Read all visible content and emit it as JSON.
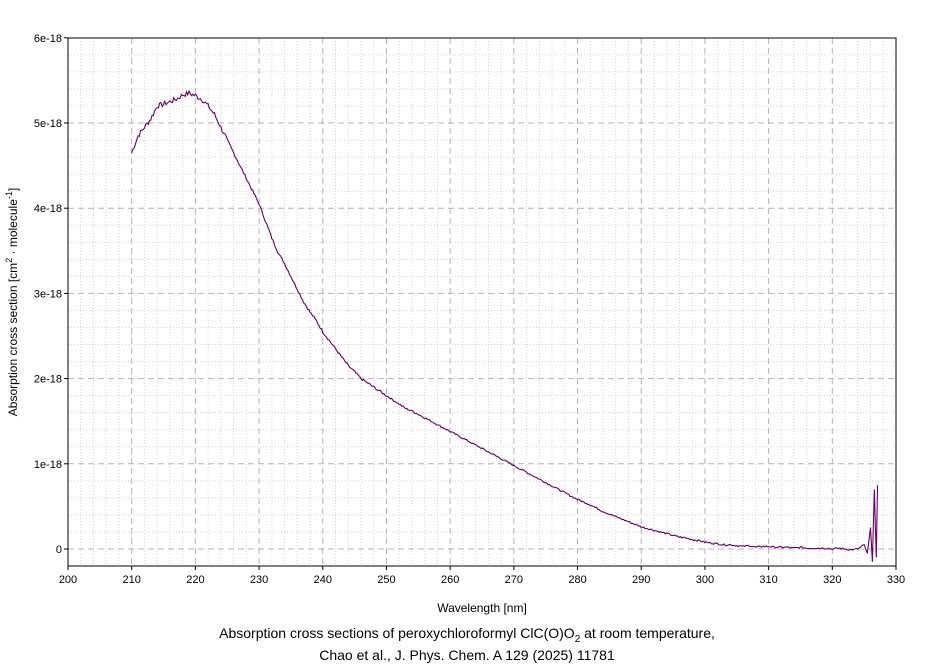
{
  "chart_data": {
    "type": "line",
    "xlabel": "Wavelength [nm]",
    "ylabel": {
      "prefix": "Absorption cross section [cm",
      "sup1": "2",
      "middle": " · molecule",
      "sup2": "-1",
      "suffix": "]"
    },
    "xlim": [
      200,
      330
    ],
    "ylim": [
      -2e-19,
      6e-18
    ],
    "x_ticks": [
      200,
      210,
      220,
      230,
      240,
      250,
      260,
      270,
      280,
      290,
      300,
      310,
      320,
      330
    ],
    "y_ticks": [
      {
        "value": 0,
        "label": "0"
      },
      {
        "value": 1e-18,
        "label": "1e-18"
      },
      {
        "value": 2e-18,
        "label": "2e-18"
      },
      {
        "value": 3e-18,
        "label": "3e-18"
      },
      {
        "value": 4e-18,
        "label": "4e-18"
      },
      {
        "value": 5e-18,
        "label": "5e-18"
      },
      {
        "value": 6e-18,
        "label": "6e-18"
      }
    ],
    "grid": true,
    "series": [
      {
        "color": "#660066",
        "x": [
          210,
          211,
          212,
          213,
          214,
          215,
          216,
          217,
          218,
          219,
          220,
          221,
          222,
          223,
          224,
          225,
          226,
          227,
          228,
          229,
          230,
          231,
          232,
          233,
          234,
          235,
          236,
          237,
          238,
          239,
          240,
          241,
          242,
          243,
          244,
          245,
          246,
          247,
          248,
          249,
          250,
          251,
          252,
          253,
          254,
          255,
          256,
          257,
          258,
          259,
          260,
          261,
          262,
          263,
          264,
          265,
          266,
          267,
          268,
          269,
          270,
          271,
          272,
          273,
          274,
          275,
          276,
          277,
          278,
          279,
          280,
          281,
          282,
          283,
          284,
          285,
          286,
          287,
          288,
          289,
          290,
          291,
          292,
          293,
          294,
          295,
          296,
          297,
          298,
          299,
          300,
          301,
          302,
          303,
          304,
          305,
          306,
          307,
          308,
          309,
          310,
          311,
          312,
          313,
          314,
          315,
          316,
          317,
          318,
          319,
          320,
          321,
          322,
          323,
          324,
          325,
          325.5,
          326,
          326.3,
          326.6,
          326.9,
          327.1
        ],
        "y": [
          4.65e-18,
          4.85e-18,
          4.95e-18,
          5.05e-18,
          5.2e-18,
          5.22e-18,
          5.25e-18,
          5.28e-18,
          5.33e-18,
          5.35e-18,
          5.32e-18,
          5.28e-18,
          5.2e-18,
          5.1e-18,
          4.95e-18,
          4.8e-18,
          4.65e-18,
          4.5e-18,
          4.35e-18,
          4.2e-18,
          4.05e-18,
          3.85e-18,
          3.65e-18,
          3.48e-18,
          3.35e-18,
          3.2e-18,
          3.05e-18,
          2.9e-18,
          2.78e-18,
          2.68e-18,
          2.55e-18,
          2.45e-18,
          2.35e-18,
          2.25e-18,
          2.15e-18,
          2.08e-18,
          2e-18,
          1.95e-18,
          1.9e-18,
          1.85e-18,
          1.8e-18,
          1.75e-18,
          1.7e-18,
          1.65e-18,
          1.62e-18,
          1.58e-18,
          1.54e-18,
          1.5e-18,
          1.46e-18,
          1.42e-18,
          1.38e-18,
          1.34e-18,
          1.3e-18,
          1.26e-18,
          1.22e-18,
          1.18e-18,
          1.14e-18,
          1.1e-18,
          1.06e-18,
          1.02e-18,
          9.8e-19,
          9.4e-19,
          9e-19,
          8.6e-19,
          8.2e-19,
          7.8e-19,
          7.4e-19,
          7e-19,
          6.6e-19,
          6.2e-19,
          5.8e-19,
          5.5e-19,
          5.2e-19,
          4.8e-19,
          4.4e-19,
          4.1e-19,
          3.8e-19,
          3.5e-19,
          3.2e-19,
          2.9e-19,
          2.6e-19,
          2.4e-19,
          2.2e-19,
          2e-19,
          1.8e-19,
          1.6e-19,
          1.4e-19,
          1.3e-19,
          1.1e-19,
          1e-19,
          8e-20,
          7e-20,
          6e-20,
          5e-20,
          5e-20,
          4e-20,
          3e-20,
          4e-20,
          2e-20,
          3e-20,
          3e-20,
          2e-20,
          2e-20,
          2e-20,
          1e-20,
          2e-20,
          1e-20,
          1e-20,
          1e-20,
          1e-20,
          0,
          1e-20,
          0,
          -1e-20,
          0,
          5e-20,
          -5e-20,
          2.5e-19,
          -1.5e-19,
          7e-19,
          -1e-19,
          7.5e-19
        ]
      }
    ]
  },
  "caption": {
    "line1_prefix": "Absorption cross sections of peroxychloroformyl ClC(O)O",
    "line1_sub": "2",
    "line1_suffix": " at room temperature,",
    "line2": "Chao et al., J. Phys. Chem. A 129 (2025) 11781"
  }
}
